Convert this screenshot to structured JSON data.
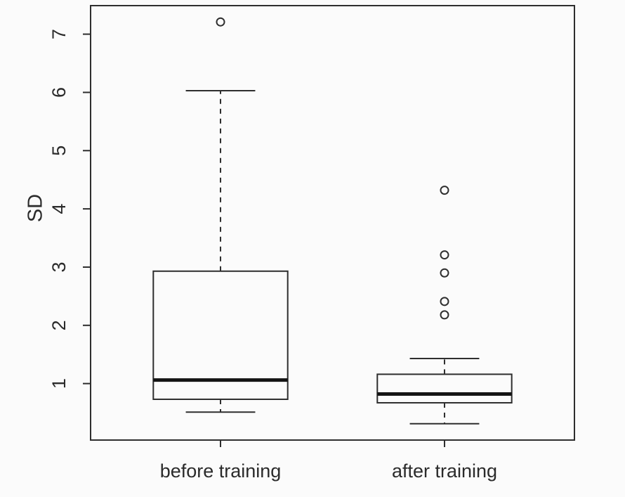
{
  "chart_data": {
    "type": "boxplot",
    "title": "",
    "xlabel": "",
    "ylabel": "SD",
    "ylim": [
      0.03,
      7.49
    ],
    "yticks": [
      1,
      2,
      3,
      4,
      5,
      6,
      7
    ],
    "grid": false,
    "legend": "none",
    "categories": [
      "before training",
      "after training"
    ],
    "series": [
      {
        "name": "before training",
        "whisker_low": 0.51,
        "q1": 0.73,
        "median": 1.06,
        "q3": 2.93,
        "whisker_high": 6.03,
        "outliers": [
          7.21
        ]
      },
      {
        "name": "after training",
        "whisker_low": 0.31,
        "q1": 0.67,
        "median": 0.82,
        "q3": 1.16,
        "whisker_high": 1.43,
        "outliers": [
          2.18,
          2.41,
          2.9,
          3.21,
          4.32
        ]
      }
    ],
    "colors": {
      "line": "#2e2e2e",
      "median": "#141414",
      "text": "#2b2b2b",
      "background": "#fbfbfb"
    }
  }
}
